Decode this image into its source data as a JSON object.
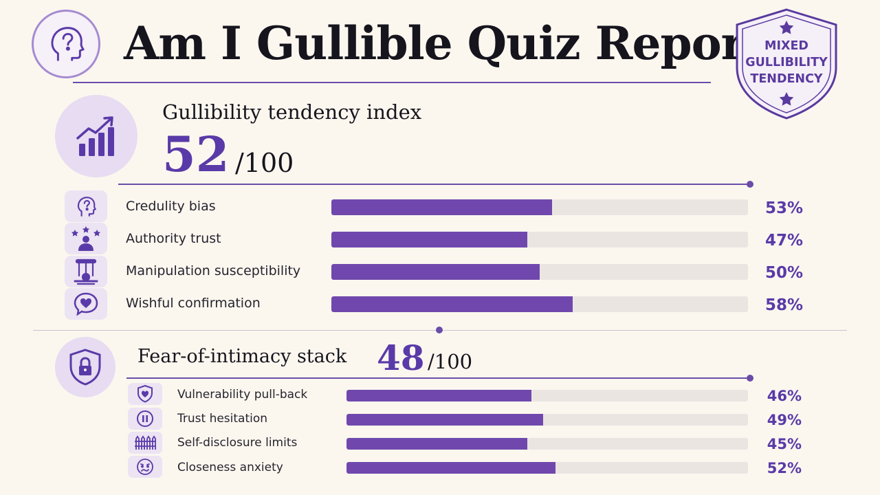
{
  "header": {
    "title": "Am I Gullible Quiz Report",
    "head_icon": "head-question-icon"
  },
  "badge": {
    "line1": "MIXED",
    "line2": "GULLIBILITY",
    "line3": "TENDENCY",
    "icon": "shield-star-icon"
  },
  "gullibility": {
    "title": "Gullibility tendency index",
    "score": "52",
    "max": "/100",
    "icon": "trend-chart-icon",
    "items": [
      {
        "label": "Credulity bias",
        "value": 53,
        "pct": "53%",
        "icon": "head-question-icon"
      },
      {
        "label": "Authority trust",
        "value": 47,
        "pct": "47%",
        "icon": "person-stars-icon"
      },
      {
        "label": "Manipulation susceptibility",
        "value": 50,
        "pct": "50%",
        "icon": "puppet-icon"
      },
      {
        "label": "Wishful confirmation",
        "value": 58,
        "pct": "58%",
        "icon": "heart-bubble-icon"
      }
    ]
  },
  "intimacy": {
    "title": "Fear-of-intimacy stack",
    "score": "48",
    "max": "/100",
    "icon": "shield-lock-icon",
    "items": [
      {
        "label": "Vulnerability pull-back",
        "value": 46,
        "pct": "46%",
        "icon": "shield-heart-icon"
      },
      {
        "label": "Trust hesitation",
        "value": 49,
        "pct": "49%",
        "icon": "pause-icon"
      },
      {
        "label": "Self-disclosure limits",
        "value": 45,
        "pct": "45%",
        "icon": "fence-icon"
      },
      {
        "label": "Closeness anxiety",
        "value": 52,
        "pct": "52%",
        "icon": "anxious-face-icon"
      }
    ]
  },
  "colors": {
    "accent": "#5a3aa8",
    "bar_fill": "#7048ad",
    "bar_track": "#ebe5e2",
    "background": "#fbf7ef"
  }
}
